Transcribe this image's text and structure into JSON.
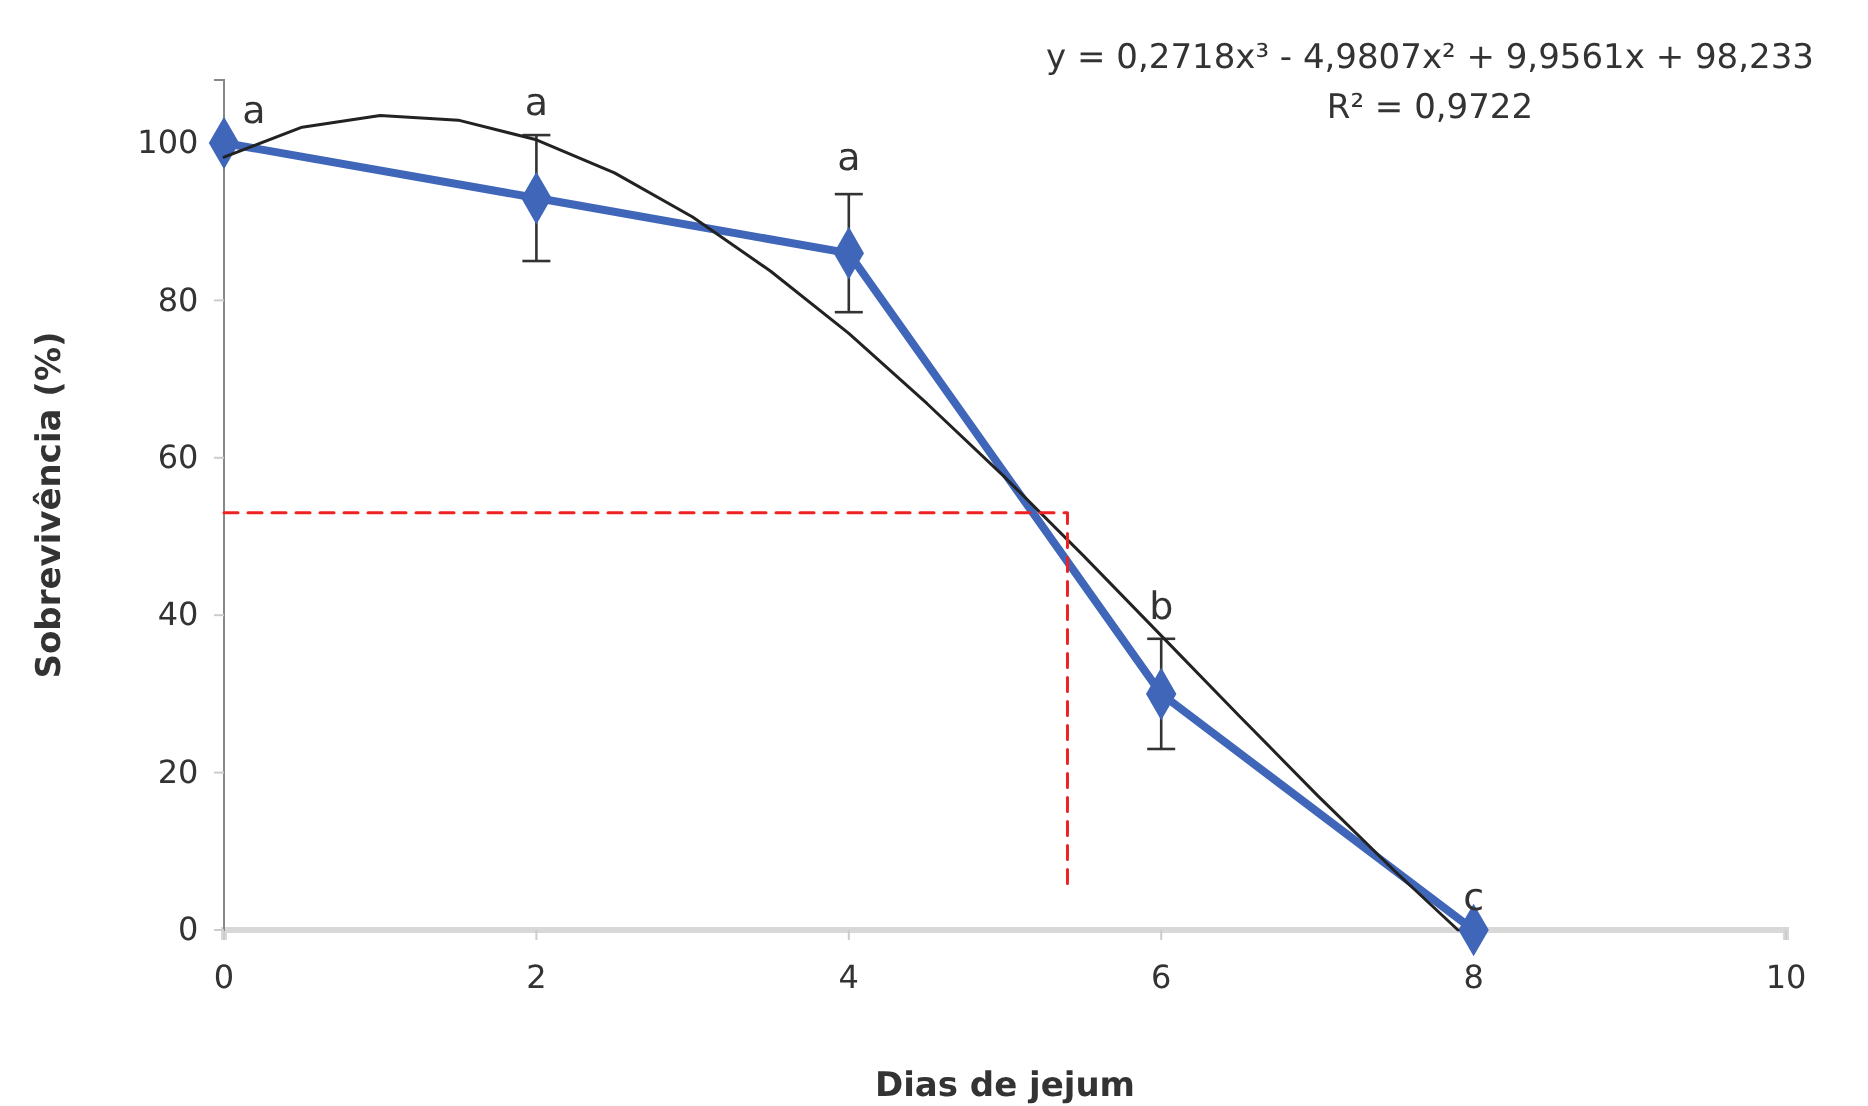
{
  "chart_data": {
    "type": "line",
    "xlabel": "Dias de jejum",
    "ylabel": "Sobrevivência (%)",
    "xlim": [
      0,
      10
    ],
    "xticks": [
      0,
      2,
      4,
      6,
      8,
      10
    ],
    "ylim": [
      0,
      108
    ],
    "yticks": [
      0,
      20,
      40,
      60,
      80,
      100
    ],
    "grid": false,
    "marker": "diamond",
    "line_style": "solid",
    "series": [
      {
        "type": "line",
        "color": "#3f66b8",
        "x": [
          0,
          2,
          4,
          6,
          8
        ],
        "values": [
          100,
          93,
          86,
          30,
          0
        ],
        "errors": [
          null,
          8,
          7.5,
          7,
          null
        ]
      },
      {
        "type": "line",
        "color": "#222222",
        "marker": "none",
        "x": [
          0,
          0.5,
          1,
          1.5,
          2,
          2.5,
          3,
          3.5,
          4,
          4.5,
          5,
          5.5,
          6,
          6.5,
          7,
          7.5,
          7.9
        ],
        "values": [
          98.2,
          102,
          103.5,
          102.9,
          100.4,
          96.2,
          90.6,
          83.7,
          75.8,
          66.9,
          57.5,
          47.6,
          37.4,
          27.2,
          17.1,
          7.4,
          0
        ]
      },
      {
        "type": "line",
        "color": "#ee2222",
        "marker": "none",
        "line_style": "dashed",
        "x": [
          0,
          5.4,
          5.4
        ],
        "values": [
          53,
          53,
          5
        ]
      }
    ],
    "annotations": [
      {
        "text": "a",
        "x": 0,
        "y": 100
      },
      {
        "text": "a",
        "x": 2,
        "y": 101
      },
      {
        "text": "a",
        "x": 4,
        "y": 94
      },
      {
        "text": "b",
        "x": 6,
        "y": 37
      },
      {
        "text": "c",
        "x": 8,
        "y": 0
      },
      "y = 0,2718x³ - 4,9807x² + 9,9561x + 98,233",
      "R² = 0,9722"
    ]
  }
}
